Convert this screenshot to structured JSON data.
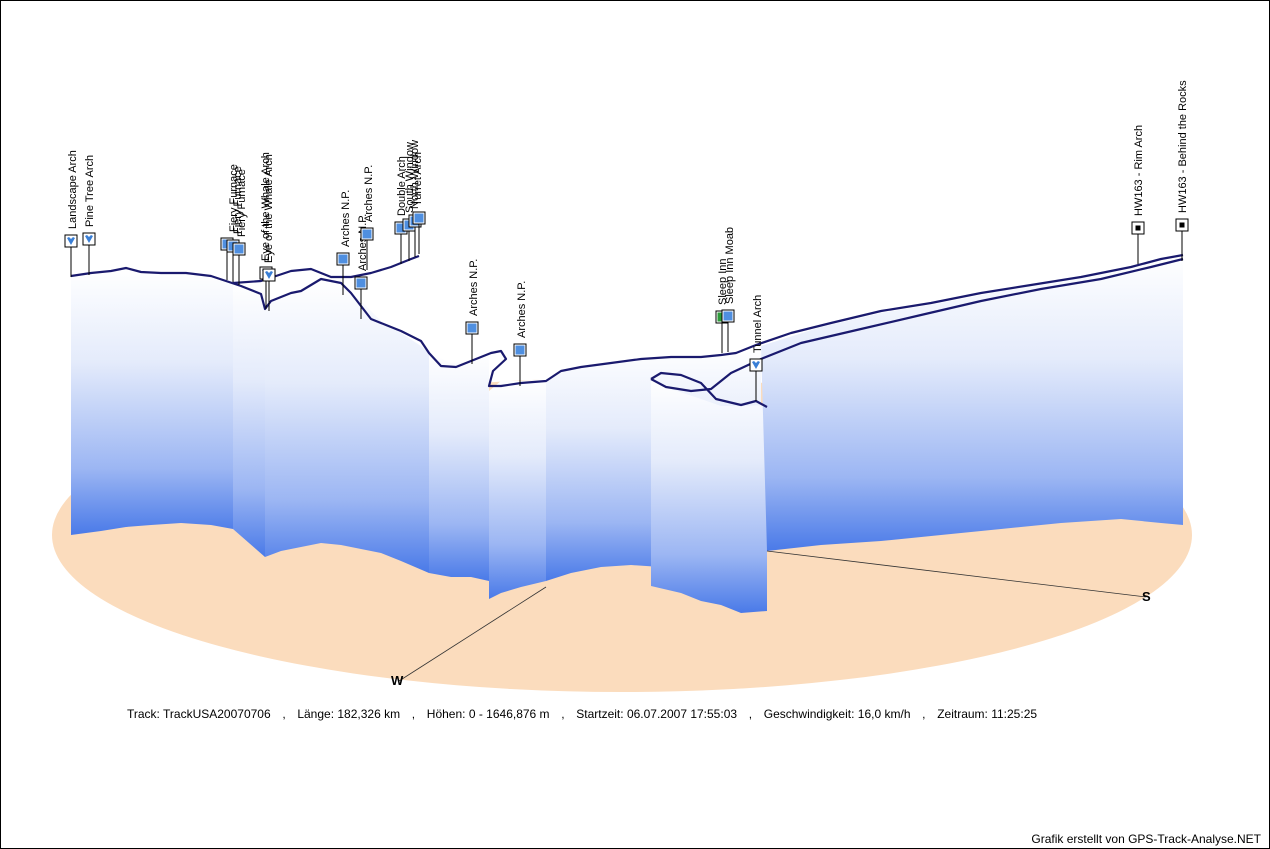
{
  "summary": {
    "track_label": "Track:",
    "track_value": "TrackUSA20070706",
    "length_label": "Länge:",
    "length_value": "182,326 km",
    "elevation_label": "Höhen:",
    "elevation_value": "0 - 1646,876 m",
    "start_label": "Startzeit:",
    "start_value": "06.07.2007 17:55:03",
    "speed_label": "Geschwindigkeit:",
    "speed_value": "16,0 km/h",
    "duration_label": "Zeitraum:",
    "duration_value": "11:25:25",
    "separator": ","
  },
  "credit": "Grafik erstellt von GPS-Track-Analyse.NET",
  "colors": {
    "track": "#1a1a6e",
    "ground": "#fbdcbd",
    "curtain_top": "#ffffff",
    "curtain_bottom": "#4a7ae8"
  },
  "chart_data": {
    "type": "3d-elevation-profile",
    "compass": [
      "W",
      "S"
    ],
    "waypoints": [
      {
        "name": "Landscape Arch",
        "icon": "heart-icon"
      },
      {
        "name": "Pine Tree Arch",
        "icon": "heart-icon"
      },
      {
        "name": "Fiery Furnace",
        "icon": "camera-icon"
      },
      {
        "name": "Fiery Furnace",
        "icon": "camera-icon"
      },
      {
        "name": "Fiery Furnace",
        "icon": "camera-icon"
      },
      {
        "name": "Eye of the Whale Arch",
        "icon": "heart-icon"
      },
      {
        "name": "Eye of the Whale Arch",
        "icon": "heart-icon"
      },
      {
        "name": "Arches N.P.",
        "icon": "camera-icon"
      },
      {
        "name": "Arches N.P.",
        "icon": "camera-icon"
      },
      {
        "name": "Arches N.P.",
        "icon": "camera-icon"
      },
      {
        "name": "Double Arch",
        "icon": "camera-icon"
      },
      {
        "name": "South Window",
        "icon": "camera-icon"
      },
      {
        "name": "North Window",
        "icon": "camera-icon"
      },
      {
        "name": "Turret Arch",
        "icon": "camera-icon"
      },
      {
        "name": "Arches N.P.",
        "icon": "camera-icon"
      },
      {
        "name": "Arches N.P.",
        "icon": "camera-icon"
      },
      {
        "name": "Sleep Inn",
        "icon": "hotel-icon"
      },
      {
        "name": "Sleep Inn Moab",
        "icon": "camera-icon"
      },
      {
        "name": "Tunnel Arch",
        "icon": "heart-icon"
      },
      {
        "name": "HW163 - Rim Arch",
        "icon": "square-icon"
      },
      {
        "name": "HW163 - Behind the Rocks",
        "icon": "square-icon"
      }
    ]
  }
}
